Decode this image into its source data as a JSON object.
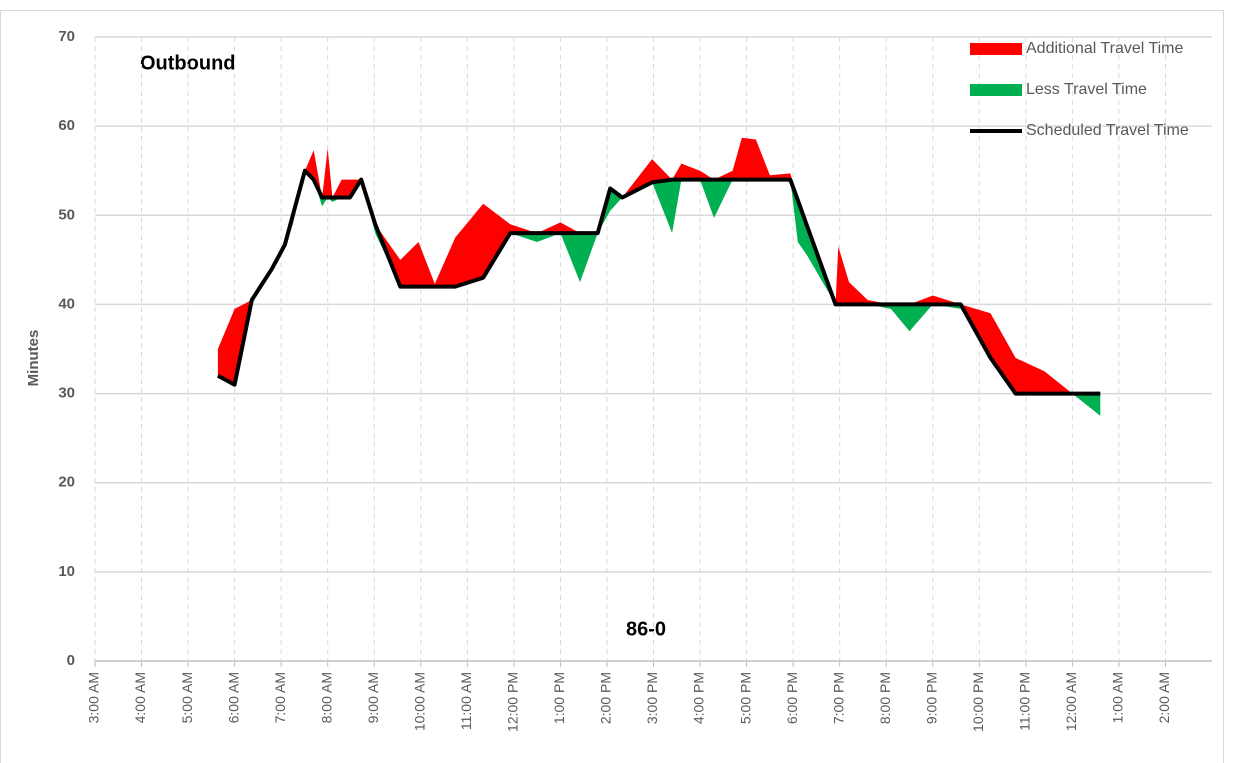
{
  "chart_data": {
    "type": "area",
    "y_label": "Minutes",
    "annotations": [
      "Outbound",
      "86-0"
    ],
    "x": [
      5.64,
      6.0,
      6.37,
      6.8,
      7.08,
      7.25,
      7.51,
      7.7,
      7.88,
      8.0,
      8.1,
      8.3,
      8.48,
      8.72,
      9.02,
      9.56,
      9.95,
      10.3,
      10.74,
      11.34,
      11.92,
      12.5,
      13.0,
      13.42,
      13.8,
      14.07,
      14.33,
      14.97,
      15.4,
      15.6,
      16.0,
      16.3,
      16.7,
      16.9,
      17.2,
      17.5,
      17.94,
      18.1,
      18.3,
      18.91,
      18.97,
      19.2,
      19.6,
      20.1,
      20.5,
      21.0,
      21.6,
      22.24,
      22.78,
      23.4,
      24.0,
      24.6
    ],
    "series": [
      {
        "name": "Additional Travel Time",
        "color": "#ff0000",
        "values": [
          3,
          8.5,
          0,
          0,
          0.3,
          0,
          0,
          3.3,
          0,
          5.5,
          0,
          2,
          2,
          0,
          0,
          3,
          5,
          0.3,
          5.5,
          8.3,
          1,
          0,
          1.2,
          0,
          0,
          0,
          0,
          2.6,
          0,
          1.8,
          1,
          0,
          1,
          4.7,
          4.5,
          0.5,
          0.7,
          0,
          0,
          0,
          6.5,
          2.5,
          0.5,
          0,
          0,
          1,
          0,
          5,
          4,
          2.5,
          0,
          0
        ]
      },
      {
        "name": "Less Travel Time",
        "color": "#00b050",
        "values": [
          0,
          0,
          0.5,
          0,
          0,
          1,
          0,
          0,
          1,
          0,
          0.5,
          0,
          0,
          0,
          1,
          0,
          0,
          0,
          0,
          0,
          0,
          1,
          0,
          5.5,
          0,
          2.5,
          0,
          0,
          6,
          0,
          0,
          4.3,
          0,
          0,
          0,
          0,
          0,
          4.7,
          3.3,
          0,
          0,
          0,
          0,
          0.5,
          3,
          0,
          0.5,
          0,
          0,
          0,
          0,
          2.5
        ]
      },
      {
        "name": "Scheduled Travel Time",
        "color": "#000000",
        "values": [
          32,
          31,
          40.5,
          44,
          46.7,
          50,
          55,
          54,
          52,
          52,
          52,
          52,
          52,
          54,
          49,
          42,
          42,
          42,
          42,
          43,
          48,
          48,
          48,
          48,
          48,
          53,
          52,
          53.7,
          54,
          54,
          54,
          54,
          54,
          54,
          54,
          54,
          54,
          51.7,
          48.8,
          40,
          40,
          40,
          40,
          40,
          40,
          40,
          40,
          34,
          30,
          30,
          30,
          30
        ]
      }
    ],
    "xlim": [
      3,
      27
    ],
    "xticks": [
      {
        "value": 3,
        "label": "3:00 AM"
      },
      {
        "value": 4,
        "label": "4:00 AM"
      },
      {
        "value": 5,
        "label": "5:00 AM"
      },
      {
        "value": 6,
        "label": "6:00 AM"
      },
      {
        "value": 7,
        "label": "7:00 AM"
      },
      {
        "value": 8,
        "label": "8:00 AM"
      },
      {
        "value": 9,
        "label": "9:00 AM"
      },
      {
        "value": 10,
        "label": "10:00 AM"
      },
      {
        "value": 11,
        "label": "11:00 AM"
      },
      {
        "value": 12,
        "label": "12:00 PM"
      },
      {
        "value": 13,
        "label": "1:00 PM"
      },
      {
        "value": 14,
        "label": "2:00 PM"
      },
      {
        "value": 15,
        "label": "3:00 PM"
      },
      {
        "value": 16,
        "label": "4:00 PM"
      },
      {
        "value": 17,
        "label": "5:00 PM"
      },
      {
        "value": 18,
        "label": "6:00 PM"
      },
      {
        "value": 19,
        "label": "7:00 PM"
      },
      {
        "value": 20,
        "label": "8:00 PM"
      },
      {
        "value": 21,
        "label": "9:00 PM"
      },
      {
        "value": 22,
        "label": "10:00 PM"
      },
      {
        "value": 23,
        "label": "11:00 PM"
      },
      {
        "value": 24,
        "label": "12:00 AM"
      },
      {
        "value": 25,
        "label": "1:00 AM"
      },
      {
        "value": 26,
        "label": "2:00 AM"
      }
    ],
    "ylim": [
      0,
      70
    ],
    "yticks": [
      0,
      10,
      20,
      30,
      40,
      50,
      60,
      70
    ],
    "grid": true,
    "legend": "top-right"
  }
}
